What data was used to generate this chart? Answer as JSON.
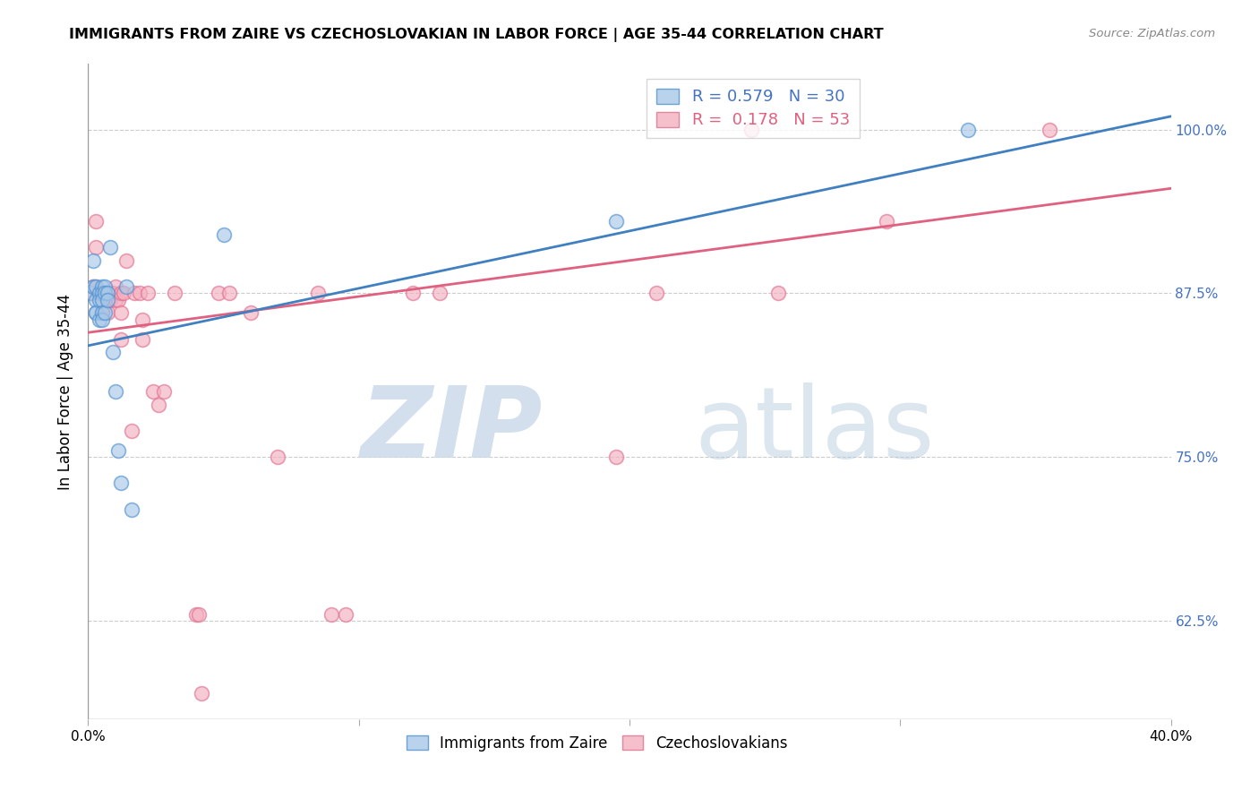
{
  "title": "IMMIGRANTS FROM ZAIRE VS CZECHOSLOVAKIAN IN LABOR FORCE | AGE 35-44 CORRELATION CHART",
  "source": "Source: ZipAtlas.com",
  "ylabel": "In Labor Force | Age 35-44",
  "xlim": [
    0.0,
    0.4
  ],
  "ylim": [
    0.55,
    1.05
  ],
  "yticks": [
    0.625,
    0.75,
    0.875,
    1.0
  ],
  "yticklabels": [
    "62.5%",
    "75.0%",
    "87.5%",
    "100.0%"
  ],
  "zaire_R": 0.579,
  "zaire_N": 30,
  "czech_R": 0.178,
  "czech_N": 53,
  "zaire_color": "#a8c8e8",
  "czech_color": "#f4b0c0",
  "zaire_edge_color": "#5090d0",
  "czech_edge_color": "#e07090",
  "zaire_line_color": "#4080c0",
  "czech_line_color": "#e06080",
  "grid_color": "#cccccc",
  "zaire_line_x": [
    0.0,
    0.4
  ],
  "zaire_line_y": [
    0.835,
    1.01
  ],
  "czech_line_x": [
    0.0,
    0.4
  ],
  "czech_line_y": [
    0.845,
    0.955
  ],
  "zaire_x": [
    0.001,
    0.002,
    0.002,
    0.003,
    0.003,
    0.003,
    0.003,
    0.004,
    0.004,
    0.004,
    0.005,
    0.005,
    0.005,
    0.005,
    0.005,
    0.006,
    0.006,
    0.006,
    0.007,
    0.007,
    0.008,
    0.009,
    0.01,
    0.011,
    0.012,
    0.014,
    0.016,
    0.05,
    0.195,
    0.325
  ],
  "zaire_y": [
    0.875,
    0.9,
    0.88,
    0.86,
    0.88,
    0.87,
    0.86,
    0.875,
    0.87,
    0.855,
    0.88,
    0.875,
    0.87,
    0.86,
    0.855,
    0.88,
    0.875,
    0.86,
    0.875,
    0.87,
    0.91,
    0.83,
    0.8,
    0.755,
    0.73,
    0.88,
    0.71,
    0.92,
    0.93,
    1.0
  ],
  "czech_x": [
    0.001,
    0.002,
    0.003,
    0.003,
    0.003,
    0.004,
    0.004,
    0.005,
    0.005,
    0.005,
    0.006,
    0.006,
    0.007,
    0.007,
    0.008,
    0.008,
    0.009,
    0.01,
    0.01,
    0.011,
    0.012,
    0.012,
    0.012,
    0.013,
    0.014,
    0.016,
    0.017,
    0.019,
    0.02,
    0.02,
    0.022,
    0.024,
    0.026,
    0.028,
    0.032,
    0.04,
    0.041,
    0.042,
    0.048,
    0.052,
    0.06,
    0.07,
    0.085,
    0.09,
    0.095,
    0.12,
    0.13,
    0.195,
    0.21,
    0.245,
    0.255,
    0.295,
    0.355
  ],
  "czech_y": [
    0.875,
    0.88,
    0.93,
    0.91,
    0.88,
    0.875,
    0.875,
    0.875,
    0.87,
    0.86,
    0.875,
    0.87,
    0.875,
    0.86,
    0.875,
    0.87,
    0.875,
    0.88,
    0.87,
    0.87,
    0.875,
    0.86,
    0.84,
    0.875,
    0.9,
    0.77,
    0.875,
    0.875,
    0.855,
    0.84,
    0.875,
    0.8,
    0.79,
    0.8,
    0.875,
    0.63,
    0.63,
    0.57,
    0.875,
    0.875,
    0.86,
    0.75,
    0.875,
    0.63,
    0.63,
    0.875,
    0.875,
    0.75,
    0.875,
    1.0,
    0.875,
    0.93,
    1.0
  ]
}
